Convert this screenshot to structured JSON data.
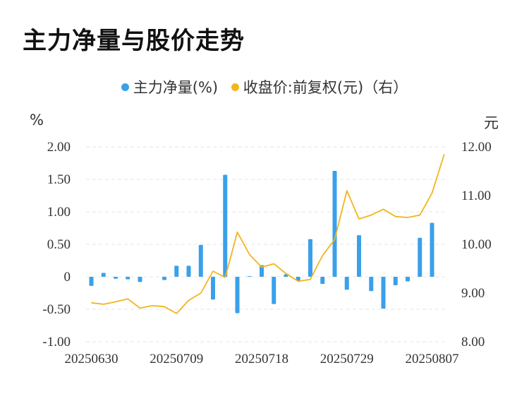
{
  "title": "主力净量与股价走势",
  "chart_data": {
    "type": "bar+line",
    "legend": [
      {
        "name": "主力净量(%)",
        "color": "#3aa0ea",
        "marker": "circle"
      },
      {
        "name": "收盘价:前复权(元)（右）",
        "color": "#f2b51c",
        "marker": "circle"
      }
    ],
    "ylabel_left": "%",
    "ylabel_right": "元",
    "ylim_left": [
      -1.0,
      2.0
    ],
    "ylim_right": [
      8.0,
      12.0
    ],
    "yticks_left": [
      "2.00",
      "1.50",
      "1.00",
      "0.50",
      "0",
      "-0.50",
      "-1.00"
    ],
    "yticks_right": [
      "12.00",
      "11.00",
      "10.00",
      "9.00",
      "8.00"
    ],
    "xtick_labels": [
      "20250630",
      "20250709",
      "20250718",
      "20250729",
      "20250807"
    ],
    "xtick_indices": [
      0,
      7,
      14,
      21,
      28
    ],
    "grid": "horizontal-dashed",
    "series": [
      {
        "name": "主力净量(%)",
        "type": "bar",
        "axis": "left",
        "values": [
          -0.14,
          0.06,
          -0.03,
          -0.04,
          -0.08,
          0,
          -0.05,
          0.17,
          0.17,
          0.49,
          -0.35,
          1.57,
          -0.56,
          0.01,
          0.18,
          -0.42,
          0.04,
          -0.06,
          0.58,
          -0.11,
          1.63,
          -0.2,
          0.64,
          -0.22,
          -0.49,
          -0.13,
          -0.07,
          0.6,
          0.83
        ]
      },
      {
        "name": "收盘价:前复权(元)（右）",
        "type": "line",
        "axis": "right",
        "values": [
          8.8,
          8.77,
          8.82,
          8.88,
          8.69,
          8.74,
          8.72,
          8.58,
          8.85,
          9.0,
          9.45,
          9.32,
          10.25,
          9.79,
          9.53,
          9.6,
          9.4,
          9.24,
          9.28,
          9.77,
          10.1,
          11.1,
          10.52,
          10.6,
          10.72,
          10.57,
          10.55,
          10.6,
          11.05,
          11.85
        ]
      }
    ]
  }
}
